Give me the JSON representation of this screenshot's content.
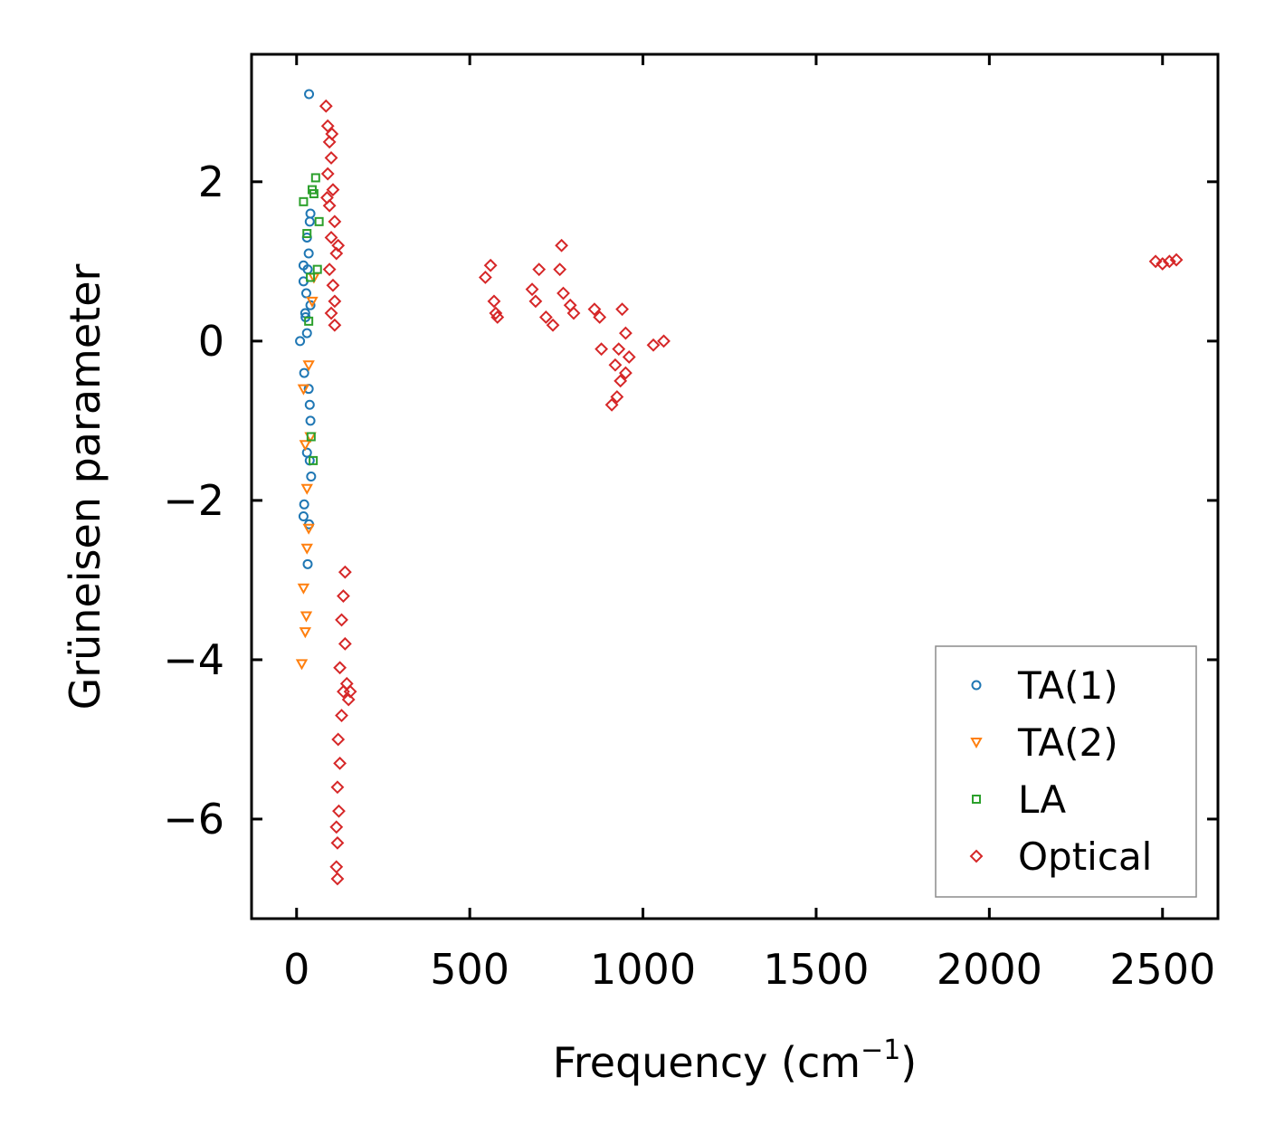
{
  "chart_data": {
    "type": "scatter",
    "title": "",
    "xlabel": "Frequency (cm",
    "xlabel_sup": "−1",
    "xlabel_end": ")",
    "ylabel": "Grüneisen parameter",
    "xlim": [
      -130,
      2660
    ],
    "ylim": [
      -7.25,
      3.6
    ],
    "xticks": [
      0,
      500,
      1000,
      1500,
      2000,
      2500
    ],
    "xtick_labels": [
      "0",
      "500",
      "1000",
      "1500",
      "2000",
      "2500"
    ],
    "yticks": [
      -6,
      -4,
      -2,
      0,
      2
    ],
    "ytick_labels": [
      "−6",
      "−4",
      "−2",
      "0",
      "2"
    ],
    "grid": false,
    "legend_position": "lower-right",
    "series": [
      {
        "name": "TA(1)",
        "marker": "circle",
        "color": "#1f77b4",
        "points": [
          [
            36,
            3.1
          ],
          [
            10,
            0.0
          ],
          [
            20,
            0.95
          ],
          [
            25,
            0.35
          ],
          [
            20,
            0.75
          ],
          [
            30,
            1.3
          ],
          [
            35,
            1.1
          ],
          [
            38,
            1.5
          ],
          [
            40,
            1.6
          ],
          [
            28,
            0.6
          ],
          [
            32,
            0.9
          ],
          [
            26,
            0.3
          ],
          [
            22,
            -0.4
          ],
          [
            35,
            -0.6
          ],
          [
            38,
            -0.8
          ],
          [
            40,
            -1.0
          ],
          [
            30,
            -1.4
          ],
          [
            42,
            -1.7
          ],
          [
            22,
            -2.05
          ],
          [
            20,
            -2.2
          ],
          [
            36,
            -2.3
          ],
          [
            32,
            -2.8
          ],
          [
            38,
            -1.5
          ],
          [
            30,
            0.1
          ],
          [
            40,
            0.45
          ]
        ]
      },
      {
        "name": "TA(2)",
        "marker": "triangle",
        "color": "#ff7f0e",
        "points": [
          [
            15,
            -4.05
          ],
          [
            25,
            -3.65
          ],
          [
            28,
            -3.45
          ],
          [
            20,
            -3.1
          ],
          [
            30,
            -2.6
          ],
          [
            35,
            -2.35
          ],
          [
            25,
            -1.3
          ],
          [
            30,
            -1.85
          ],
          [
            20,
            -0.6
          ],
          [
            35,
            -0.3
          ],
          [
            40,
            -1.2
          ],
          [
            45,
            0.5
          ],
          [
            50,
            0.8
          ]
        ]
      },
      {
        "name": "LA",
        "marker": "square",
        "color": "#2ca02c",
        "points": [
          [
            20,
            1.75
          ],
          [
            30,
            1.35
          ],
          [
            45,
            1.9
          ],
          [
            55,
            2.05
          ],
          [
            50,
            1.85
          ],
          [
            40,
            0.8
          ],
          [
            35,
            0.25
          ],
          [
            48,
            -1.5
          ],
          [
            42,
            -1.2
          ],
          [
            60,
            0.9
          ],
          [
            65,
            1.5
          ]
        ]
      },
      {
        "name": "Optical",
        "marker": "diamond",
        "color": "#d62728",
        "points": [
          [
            85,
            2.95
          ],
          [
            90,
            2.7
          ],
          [
            95,
            2.5
          ],
          [
            100,
            2.3
          ],
          [
            90,
            2.1
          ],
          [
            105,
            1.9
          ],
          [
            95,
            1.7
          ],
          [
            110,
            1.5
          ],
          [
            100,
            1.3
          ],
          [
            115,
            1.1
          ],
          [
            95,
            0.9
          ],
          [
            105,
            0.7
          ],
          [
            110,
            0.5
          ],
          [
            100,
            0.35
          ],
          [
            110,
            0.2
          ],
          [
            120,
            1.2
          ],
          [
            88,
            1.8
          ],
          [
            102,
            2.6
          ],
          [
            140,
            -2.9
          ],
          [
            135,
            -3.2
          ],
          [
            130,
            -3.5
          ],
          [
            140,
            -3.8
          ],
          [
            125,
            -4.1
          ],
          [
            145,
            -4.3
          ],
          [
            150,
            -4.5
          ],
          [
            130,
            -4.7
          ],
          [
            120,
            -5.0
          ],
          [
            125,
            -5.3
          ],
          [
            118,
            -5.6
          ],
          [
            122,
            -5.9
          ],
          [
            115,
            -6.1
          ],
          [
            118,
            -6.3
          ],
          [
            115,
            -6.6
          ],
          [
            118,
            -6.75
          ],
          [
            135,
            -4.4
          ],
          [
            155,
            -4.4
          ],
          [
            560,
            0.95
          ],
          [
            545,
            0.8
          ],
          [
            570,
            0.5
          ],
          [
            575,
            0.35
          ],
          [
            580,
            0.3
          ],
          [
            700,
            0.9
          ],
          [
            680,
            0.65
          ],
          [
            690,
            0.5
          ],
          [
            720,
            0.3
          ],
          [
            740,
            0.2
          ],
          [
            765,
            1.2
          ],
          [
            760,
            0.9
          ],
          [
            770,
            0.6
          ],
          [
            790,
            0.45
          ],
          [
            800,
            0.35
          ],
          [
            860,
            0.4
          ],
          [
            875,
            0.3
          ],
          [
            880,
            -0.1
          ],
          [
            940,
            0.4
          ],
          [
            930,
            -0.1
          ],
          [
            950,
            0.1
          ],
          [
            920,
            -0.3
          ],
          [
            935,
            -0.5
          ],
          [
            950,
            -0.4
          ],
          [
            925,
            -0.7
          ],
          [
            910,
            -0.8
          ],
          [
            960,
            -0.2
          ],
          [
            1030,
            -0.05
          ],
          [
            1060,
            0.0
          ],
          [
            2480,
            1.0
          ],
          [
            2500,
            0.97
          ],
          [
            2520,
            1.0
          ],
          [
            2540,
            1.02
          ]
        ]
      }
    ]
  }
}
